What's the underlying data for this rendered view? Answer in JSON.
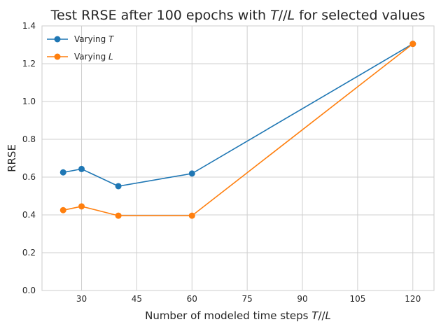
{
  "chart_data": {
    "type": "line",
    "title": "Test RRSE after 100 epochs with T//L for selected values",
    "xlabel": "Number of modeled time steps T//L",
    "ylabel": "RRSE",
    "xlim": [
      19.25,
      125.75
    ],
    "ylim": [
      0.0,
      1.4
    ],
    "xticks": [
      30,
      45,
      60,
      75,
      90,
      105,
      120
    ],
    "yticks": [
      0.0,
      0.2,
      0.4,
      0.6,
      0.8,
      1.0,
      1.2,
      1.4
    ],
    "ytick_labels": [
      "0.0",
      "0.2",
      "0.4",
      "0.6",
      "0.8",
      "1.0",
      "1.2",
      "1.4"
    ],
    "grid": true,
    "legend_position": "top-left",
    "series": [
      {
        "name": "Varying T",
        "color": "#1f77b4",
        "x": [
          25,
          30,
          40,
          60,
          120
        ],
        "y": [
          0.625,
          0.643,
          0.552,
          0.619,
          1.305
        ]
      },
      {
        "name": "Varying L",
        "color": "#ff7f0e",
        "x": [
          25,
          30,
          40,
          60,
          120
        ],
        "y": [
          0.425,
          0.445,
          0.396,
          0.396,
          1.305
        ]
      }
    ]
  }
}
